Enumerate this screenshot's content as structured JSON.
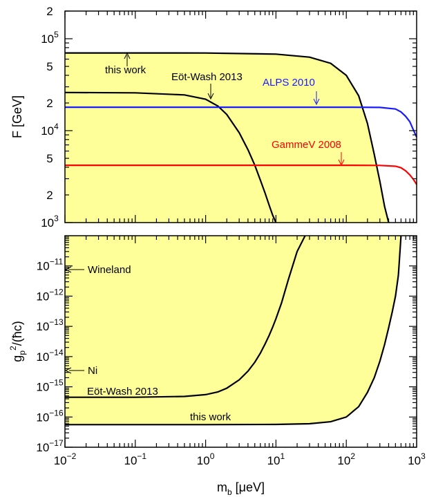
{
  "colors": {
    "excluded_fill": "#ffff99",
    "axis": "#000000",
    "black_curve": "#000000",
    "alps": "#1a1aff",
    "gammev": "#ff0000"
  },
  "chart_data": [
    {
      "type": "line",
      "panel": "top",
      "xscale": "log",
      "yscale": "log",
      "xlim": [
        0.01,
        1000
      ],
      "ylim": [
        1000,
        200000
      ],
      "ylabel": "F [GeV]",
      "xlabel": "",
      "yticks": [
        {
          "value": 1000,
          "base": "10",
          "exp": "3"
        },
        {
          "value": 2000,
          "base": "2",
          "exp": ""
        },
        {
          "value": 5000,
          "base": "5",
          "exp": ""
        },
        {
          "value": 10000,
          "base": "10",
          "exp": "4"
        },
        {
          "value": 20000,
          "base": "2",
          "exp": ""
        },
        {
          "value": 50000,
          "base": "5",
          "exp": ""
        },
        {
          "value": 100000,
          "base": "10",
          "exp": "5"
        },
        {
          "value": 200000,
          "base": "2",
          "exp": ""
        }
      ],
      "shaded_region": "excluded area below 'this work' curve",
      "series": [
        {
          "name": "this work",
          "color": "#000000",
          "x": [
            0.01,
            0.1,
            1,
            10,
            30,
            60,
            100,
            150,
            200,
            250,
            300,
            350,
            400
          ],
          "y": [
            70000,
            70000,
            69900,
            68000,
            63000,
            54000,
            40000,
            24000,
            12000,
            5500,
            2800,
            1500,
            1000
          ]
        },
        {
          "name": "Eöt-Wash 2013",
          "color": "#000000",
          "x": [
            0.01,
            0.1,
            0.5,
            1,
            1.5,
            2,
            3,
            4,
            5,
            6,
            7,
            8,
            9,
            10
          ],
          "y": [
            26000,
            25800,
            24500,
            22000,
            18500,
            15000,
            9500,
            6200,
            4200,
            2900,
            2100,
            1550,
            1200,
            1000
          ]
        },
        {
          "name": "ALPS 2010",
          "color": "#1a1aff",
          "x": [
            0.01,
            1,
            100,
            300,
            500,
            600,
            700,
            800,
            900,
            1000
          ],
          "y": [
            18000,
            18000,
            18000,
            17900,
            17200,
            16000,
            14300,
            12500,
            10200,
            8500
          ]
        },
        {
          "name": "GammeV 2008",
          "color": "#ff0000",
          "x": [
            0.01,
            1,
            100,
            300,
            500,
            600,
            700,
            800,
            900,
            1000
          ],
          "y": [
            4200,
            4200,
            4200,
            4190,
            4100,
            3950,
            3650,
            3300,
            2950,
            2600
          ]
        }
      ],
      "annotations": [
        {
          "text": "this work",
          "x": 0.08,
          "y": 70000,
          "color": "#000000"
        },
        {
          "text": "Eöt-Wash 2013",
          "x": 1.3,
          "y": 26000,
          "color": "#000000"
        },
        {
          "text": "ALPS 2010",
          "x": 40,
          "y": 18000,
          "color": "#1a1aff"
        },
        {
          "text": "GammeV 2008",
          "x": 95,
          "y": 4200,
          "color": "#ff0000"
        }
      ]
    },
    {
      "type": "line",
      "panel": "bottom",
      "xscale": "log",
      "yscale": "log",
      "xlim": [
        0.01,
        1000
      ],
      "ylim": [
        1e-17,
        1e-10
      ],
      "xlabel": "m_b [μeV]",
      "ylabel": "g_p^2/(ħc)",
      "xticks": [
        {
          "value": 0.01,
          "base": "10",
          "exp": "−2"
        },
        {
          "value": 0.1,
          "base": "10",
          "exp": "−1"
        },
        {
          "value": 1,
          "base": "10",
          "exp": "0"
        },
        {
          "value": 10,
          "base": "10",
          "exp": "1"
        },
        {
          "value": 100,
          "base": "10",
          "exp": "2"
        },
        {
          "value": 1000,
          "base": "10",
          "exp": "3"
        }
      ],
      "yticks": [
        {
          "value": 1e-11,
          "base": "10",
          "exp": "−11"
        },
        {
          "value": 1e-12,
          "base": "10",
          "exp": "−12"
        },
        {
          "value": 1e-13,
          "base": "10",
          "exp": "−13"
        },
        {
          "value": 1e-14,
          "base": "10",
          "exp": "−14"
        },
        {
          "value": 1e-15,
          "base": "10",
          "exp": "−15"
        },
        {
          "value": 1e-16,
          "base": "10",
          "exp": "−16"
        },
        {
          "value": 1e-17,
          "base": "10",
          "exp": "−17"
        }
      ],
      "shaded_region": "excluded area above 'this work' curve",
      "series": [
        {
          "name": "Eöt-Wash 2013",
          "color": "#000000",
          "x": [
            0.01,
            0.1,
            0.5,
            1,
            1.5,
            2,
            3,
            4,
            5,
            6,
            7,
            8,
            9,
            10,
            12,
            15,
            20,
            26
          ],
          "y": [
            4.5e-16,
            4.5e-16,
            4.8e-16,
            5.5e-16,
            6.8e-16,
            9e-16,
            1.7e-15,
            3.3e-15,
            6.5e-15,
            1.3e-14,
            2.6e-14,
            5e-14,
            9.5e-14,
            1.8e-13,
            6e-13,
            3.5e-12,
            3e-11,
            1e-10
          ]
        },
        {
          "name": "this work",
          "color": "#000000",
          "x": [
            0.01,
            1,
            10,
            30,
            60,
            100,
            150,
            200,
            250,
            300,
            350,
            400,
            450,
            500,
            550,
            600
          ],
          "y": [
            5.6e-17,
            5.6e-17,
            5.7e-17,
            6e-17,
            7e-17,
            1e-16,
            2.2e-16,
            6.5e-16,
            2e-15,
            7e-15,
            2.5e-14,
            9e-14,
            3e-13,
            1e-12,
            5e-12,
            1e-10
          ]
        }
      ],
      "annotations": [
        {
          "text": "Wineland",
          "x": 0.016,
          "y": 8e-12,
          "arrow_to_x": 0.01
        },
        {
          "text": "Ni",
          "x": 0.016,
          "y": 3.5e-15,
          "arrow_to_x": 0.01
        },
        {
          "text": "Eöt-Wash 2013",
          "x": 0.035,
          "y": 9e-16
        },
        {
          "text": "this work",
          "x": 3.5,
          "y": 1.1e-16
        }
      ]
    }
  ]
}
